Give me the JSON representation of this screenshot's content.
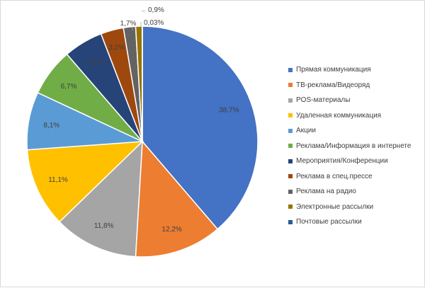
{
  "chart_data": {
    "type": "pie",
    "title": "",
    "start_angle_deg": 0,
    "direction": "clockwise",
    "legend_position": "right",
    "slices": [
      {
        "label": "Прямая коммуникация",
        "value": 38.7,
        "value_label": "38,7%",
        "color": "#4472C4"
      },
      {
        "label": "ТВ-реклама/Видеоряд",
        "value": 12.2,
        "value_label": "12,2%",
        "color": "#ED7D31"
      },
      {
        "label": "POS-материалы",
        "value": 11.8,
        "value_label": "11,8%",
        "color": "#A5A5A5"
      },
      {
        "label": "Удаленная коммуникация",
        "value": 11.1,
        "value_label": "11,1%",
        "color": "#FFC000"
      },
      {
        "label": "Акции",
        "value": 8.1,
        "value_label": "8,1%",
        "color": "#5B9BD5"
      },
      {
        "label": "Реклама/Информация в интернете",
        "value": 6.7,
        "value_label": "6,7%",
        "color": "#70AD47"
      },
      {
        "label": "Мероприятия/Конференции",
        "value": 5.5,
        "value_label": "5,5%",
        "color": "#264478"
      },
      {
        "label": "Реклама в спец.прессе",
        "value": 3.2,
        "value_label": "3,2%",
        "color": "#9E480E"
      },
      {
        "label": "Реклама на радио",
        "value": 1.7,
        "value_label": "1,7%",
        "color": "#636363"
      },
      {
        "label": "Электронные рассылки",
        "value": 0.9,
        "value_label": "0,9%",
        "color": "#997300"
      },
      {
        "label": "Почтовые рассылки",
        "value": 0.03,
        "value_label": "0,03%",
        "color": "#255E91"
      }
    ]
  }
}
